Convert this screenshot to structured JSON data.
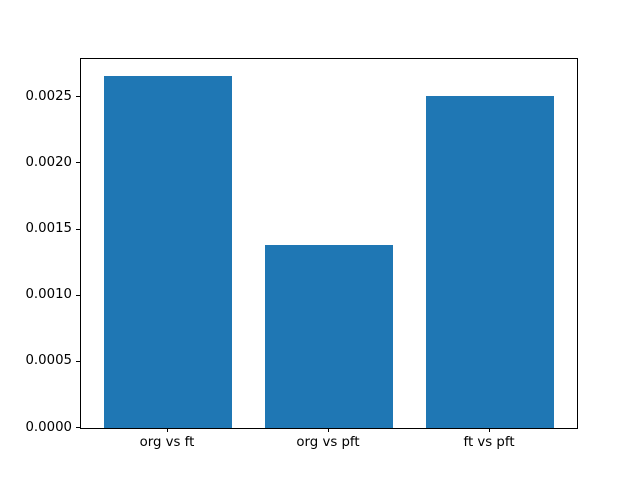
{
  "chart_data": {
    "type": "bar",
    "categories": [
      "org vs ft",
      "org vs pft",
      "ft vs pft"
    ],
    "values": [
      0.00266,
      0.00138,
      0.00251
    ],
    "title": "",
    "xlabel": "",
    "ylabel": "",
    "ylim": [
      0,
      0.00279
    ],
    "yticks": [
      0.0,
      0.0005,
      0.001,
      0.0015,
      0.002,
      0.0025
    ],
    "ytick_labels": [
      "0.0000",
      "0.0005",
      "0.0010",
      "0.0015",
      "0.0020",
      "0.0025"
    ],
    "bar_color": "#1f77b4",
    "bar_width_fraction": 0.8,
    "x_margin_units": 0.54,
    "grid": false,
    "legend_position": "none",
    "axes_border_color": "#000000",
    "background_color": "#ffffff",
    "tick_label_color": "#000000"
  }
}
